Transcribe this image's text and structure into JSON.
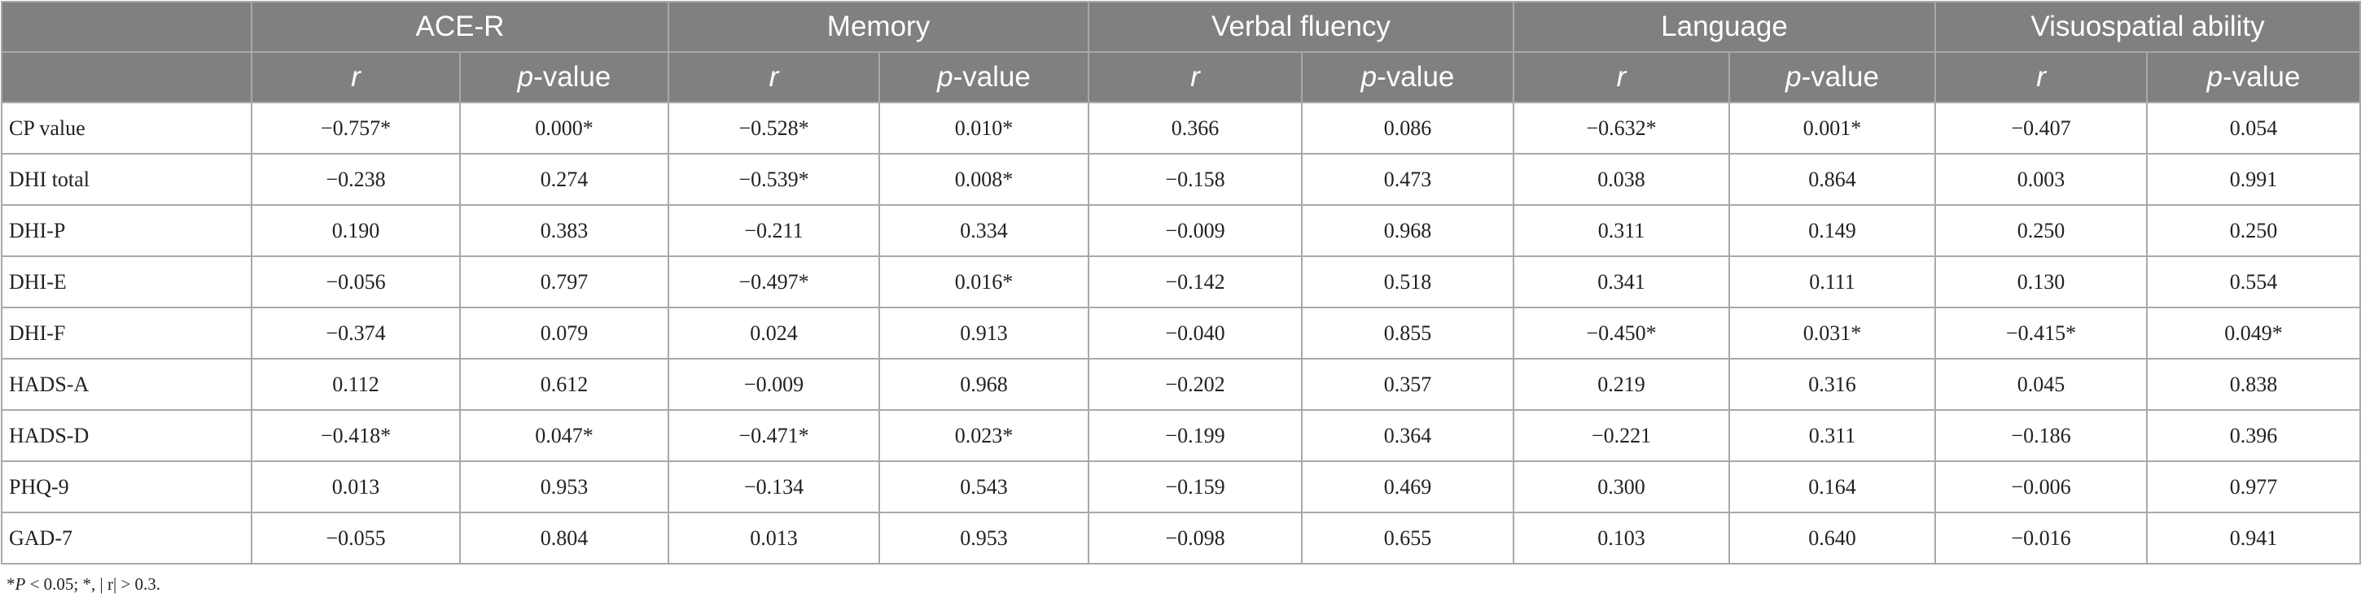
{
  "table": {
    "groups": [
      "ACE-R",
      "Memory",
      "Verbal fluency",
      "Language",
      "Visuospatial ability"
    ],
    "subheaders": {
      "r": "r",
      "p_prefix": "p",
      "p_suffix": "-value"
    },
    "rows": [
      {
        "label": "CP value",
        "values": [
          "−0.757*",
          "0.000*",
          "−0.528*",
          "0.010*",
          "0.366",
          "0.086",
          "−0.632*",
          "0.001*",
          "−0.407",
          "0.054"
        ]
      },
      {
        "label": "DHI total",
        "values": [
          "−0.238",
          "0.274",
          "−0.539*",
          "0.008*",
          "−0.158",
          "0.473",
          "0.038",
          "0.864",
          "0.003",
          "0.991"
        ]
      },
      {
        "label": "DHI-P",
        "values": [
          "0.190",
          "0.383",
          "−0.211",
          "0.334",
          "−0.009",
          "0.968",
          "0.311",
          "0.149",
          "0.250",
          "0.250"
        ]
      },
      {
        "label": "DHI-E",
        "values": [
          "−0.056",
          "0.797",
          "−0.497*",
          "0.016*",
          "−0.142",
          "0.518",
          "0.341",
          "0.111",
          "0.130",
          "0.554"
        ]
      },
      {
        "label": "DHI-F",
        "values": [
          "−0.374",
          "0.079",
          "0.024",
          "0.913",
          "−0.040",
          "0.855",
          "−0.450*",
          "0.031*",
          "−0.415*",
          "0.049*"
        ]
      },
      {
        "label": "HADS-A",
        "values": [
          "0.112",
          "0.612",
          "−0.009",
          "0.968",
          "−0.202",
          "0.357",
          "0.219",
          "0.316",
          "0.045",
          "0.838"
        ]
      },
      {
        "label": "HADS-D",
        "values": [
          "−0.418*",
          "0.047*",
          "−0.471*",
          "0.023*",
          "−0.199",
          "0.364",
          "−0.221",
          "0.311",
          "−0.186",
          "0.396"
        ]
      },
      {
        "label": "PHQ-9",
        "values": [
          "0.013",
          "0.953",
          "−0.134",
          "0.543",
          "−0.159",
          "0.469",
          "0.300",
          "0.164",
          "−0.006",
          "0.977"
        ]
      },
      {
        "label": "GAD-7",
        "values": [
          "−0.055",
          "0.804",
          "0.013",
          "0.953",
          "−0.098",
          "0.655",
          "0.103",
          "0.640",
          "−0.016",
          "0.941"
        ]
      }
    ]
  },
  "footnote": {
    "star": "*",
    "p_symbol": "P",
    "rest": " < 0.05; *, | r|  > 0.3."
  }
}
